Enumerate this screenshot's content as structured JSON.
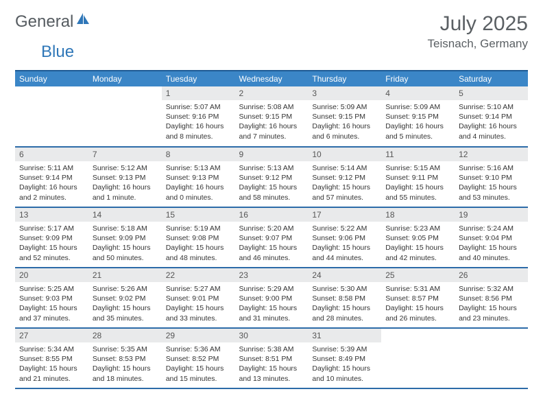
{
  "logo": {
    "part1": "General",
    "part2": "Blue",
    "sail_color": "#2f77b8"
  },
  "title": {
    "month": "July 2025",
    "location": "Teisnach, Germany"
  },
  "calendar": {
    "header_bg": "#3b86c7",
    "header_border": "#1e5a94",
    "row_border": "#2c6ba8",
    "daynum_bg": "#e9eaeb",
    "background": "#ffffff",
    "day_names": [
      "Sunday",
      "Monday",
      "Tuesday",
      "Wednesday",
      "Thursday",
      "Friday",
      "Saturday"
    ],
    "weeks": [
      [
        null,
        null,
        {
          "n": "1",
          "sunrise": "Sunrise: 5:07 AM",
          "sunset": "Sunset: 9:16 PM",
          "day1": "Daylight: 16 hours",
          "day2": "and 8 minutes."
        },
        {
          "n": "2",
          "sunrise": "Sunrise: 5:08 AM",
          "sunset": "Sunset: 9:15 PM",
          "day1": "Daylight: 16 hours",
          "day2": "and 7 minutes."
        },
        {
          "n": "3",
          "sunrise": "Sunrise: 5:09 AM",
          "sunset": "Sunset: 9:15 PM",
          "day1": "Daylight: 16 hours",
          "day2": "and 6 minutes."
        },
        {
          "n": "4",
          "sunrise": "Sunrise: 5:09 AM",
          "sunset": "Sunset: 9:15 PM",
          "day1": "Daylight: 16 hours",
          "day2": "and 5 minutes."
        },
        {
          "n": "5",
          "sunrise": "Sunrise: 5:10 AM",
          "sunset": "Sunset: 9:14 PM",
          "day1": "Daylight: 16 hours",
          "day2": "and 4 minutes."
        }
      ],
      [
        {
          "n": "6",
          "sunrise": "Sunrise: 5:11 AM",
          "sunset": "Sunset: 9:14 PM",
          "day1": "Daylight: 16 hours",
          "day2": "and 2 minutes."
        },
        {
          "n": "7",
          "sunrise": "Sunrise: 5:12 AM",
          "sunset": "Sunset: 9:13 PM",
          "day1": "Daylight: 16 hours",
          "day2": "and 1 minute."
        },
        {
          "n": "8",
          "sunrise": "Sunrise: 5:13 AM",
          "sunset": "Sunset: 9:13 PM",
          "day1": "Daylight: 16 hours",
          "day2": "and 0 minutes."
        },
        {
          "n": "9",
          "sunrise": "Sunrise: 5:13 AM",
          "sunset": "Sunset: 9:12 PM",
          "day1": "Daylight: 15 hours",
          "day2": "and 58 minutes."
        },
        {
          "n": "10",
          "sunrise": "Sunrise: 5:14 AM",
          "sunset": "Sunset: 9:12 PM",
          "day1": "Daylight: 15 hours",
          "day2": "and 57 minutes."
        },
        {
          "n": "11",
          "sunrise": "Sunrise: 5:15 AM",
          "sunset": "Sunset: 9:11 PM",
          "day1": "Daylight: 15 hours",
          "day2": "and 55 minutes."
        },
        {
          "n": "12",
          "sunrise": "Sunrise: 5:16 AM",
          "sunset": "Sunset: 9:10 PM",
          "day1": "Daylight: 15 hours",
          "day2": "and 53 minutes."
        }
      ],
      [
        {
          "n": "13",
          "sunrise": "Sunrise: 5:17 AM",
          "sunset": "Sunset: 9:09 PM",
          "day1": "Daylight: 15 hours",
          "day2": "and 52 minutes."
        },
        {
          "n": "14",
          "sunrise": "Sunrise: 5:18 AM",
          "sunset": "Sunset: 9:09 PM",
          "day1": "Daylight: 15 hours",
          "day2": "and 50 minutes."
        },
        {
          "n": "15",
          "sunrise": "Sunrise: 5:19 AM",
          "sunset": "Sunset: 9:08 PM",
          "day1": "Daylight: 15 hours",
          "day2": "and 48 minutes."
        },
        {
          "n": "16",
          "sunrise": "Sunrise: 5:20 AM",
          "sunset": "Sunset: 9:07 PM",
          "day1": "Daylight: 15 hours",
          "day2": "and 46 minutes."
        },
        {
          "n": "17",
          "sunrise": "Sunrise: 5:22 AM",
          "sunset": "Sunset: 9:06 PM",
          "day1": "Daylight: 15 hours",
          "day2": "and 44 minutes."
        },
        {
          "n": "18",
          "sunrise": "Sunrise: 5:23 AM",
          "sunset": "Sunset: 9:05 PM",
          "day1": "Daylight: 15 hours",
          "day2": "and 42 minutes."
        },
        {
          "n": "19",
          "sunrise": "Sunrise: 5:24 AM",
          "sunset": "Sunset: 9:04 PM",
          "day1": "Daylight: 15 hours",
          "day2": "and 40 minutes."
        }
      ],
      [
        {
          "n": "20",
          "sunrise": "Sunrise: 5:25 AM",
          "sunset": "Sunset: 9:03 PM",
          "day1": "Daylight: 15 hours",
          "day2": "and 37 minutes."
        },
        {
          "n": "21",
          "sunrise": "Sunrise: 5:26 AM",
          "sunset": "Sunset: 9:02 PM",
          "day1": "Daylight: 15 hours",
          "day2": "and 35 minutes."
        },
        {
          "n": "22",
          "sunrise": "Sunrise: 5:27 AM",
          "sunset": "Sunset: 9:01 PM",
          "day1": "Daylight: 15 hours",
          "day2": "and 33 minutes."
        },
        {
          "n": "23",
          "sunrise": "Sunrise: 5:29 AM",
          "sunset": "Sunset: 9:00 PM",
          "day1": "Daylight: 15 hours",
          "day2": "and 31 minutes."
        },
        {
          "n": "24",
          "sunrise": "Sunrise: 5:30 AM",
          "sunset": "Sunset: 8:58 PM",
          "day1": "Daylight: 15 hours",
          "day2": "and 28 minutes."
        },
        {
          "n": "25",
          "sunrise": "Sunrise: 5:31 AM",
          "sunset": "Sunset: 8:57 PM",
          "day1": "Daylight: 15 hours",
          "day2": "and 26 minutes."
        },
        {
          "n": "26",
          "sunrise": "Sunrise: 5:32 AM",
          "sunset": "Sunset: 8:56 PM",
          "day1": "Daylight: 15 hours",
          "day2": "and 23 minutes."
        }
      ],
      [
        {
          "n": "27",
          "sunrise": "Sunrise: 5:34 AM",
          "sunset": "Sunset: 8:55 PM",
          "day1": "Daylight: 15 hours",
          "day2": "and 21 minutes."
        },
        {
          "n": "28",
          "sunrise": "Sunrise: 5:35 AM",
          "sunset": "Sunset: 8:53 PM",
          "day1": "Daylight: 15 hours",
          "day2": "and 18 minutes."
        },
        {
          "n": "29",
          "sunrise": "Sunrise: 5:36 AM",
          "sunset": "Sunset: 8:52 PM",
          "day1": "Daylight: 15 hours",
          "day2": "and 15 minutes."
        },
        {
          "n": "30",
          "sunrise": "Sunrise: 5:38 AM",
          "sunset": "Sunset: 8:51 PM",
          "day1": "Daylight: 15 hours",
          "day2": "and 13 minutes."
        },
        {
          "n": "31",
          "sunrise": "Sunrise: 5:39 AM",
          "sunset": "Sunset: 8:49 PM",
          "day1": "Daylight: 15 hours",
          "day2": "and 10 minutes."
        },
        null,
        null
      ]
    ]
  }
}
